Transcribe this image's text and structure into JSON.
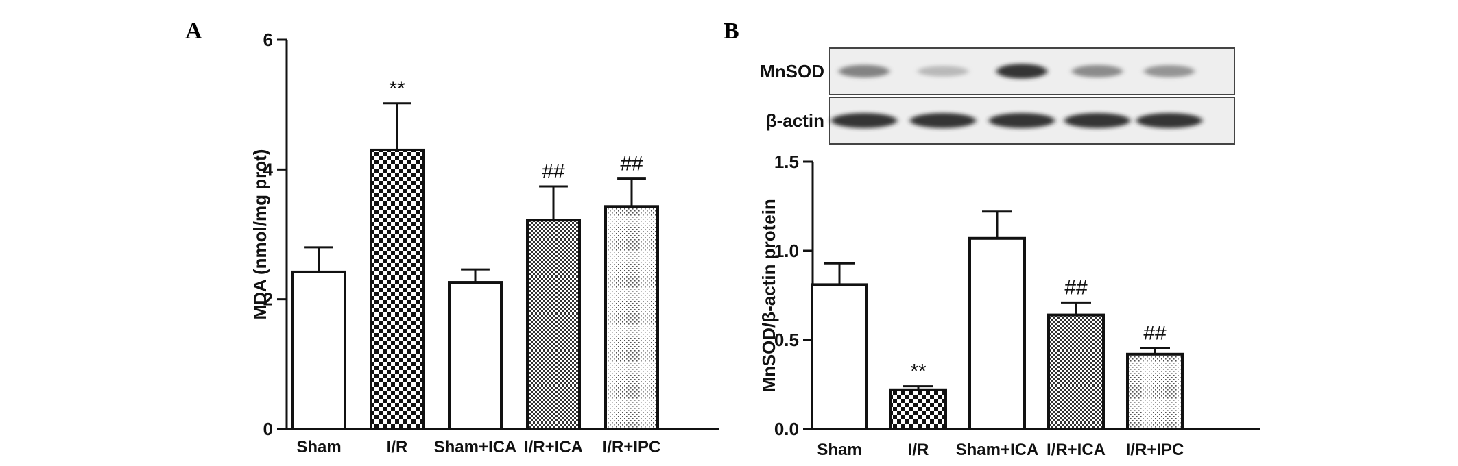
{
  "chart_data": [
    {
      "panel": "A",
      "type": "bar",
      "categories": [
        "Sham",
        "I/R",
        "Sham+ICA",
        "I/R+ICA",
        "I/R+IPC"
      ],
      "values": [
        2.42,
        4.3,
        2.26,
        3.22,
        3.43
      ],
      "errors": [
        0.38,
        0.72,
        0.2,
        0.52,
        0.43
      ],
      "significance": [
        "",
        "**",
        "",
        "##",
        "##"
      ],
      "patterns": [
        "none",
        "checker",
        "none",
        "fine-checker",
        "dots"
      ],
      "ylabel": "MDA (nmol/mg prot)",
      "ylim": [
        0,
        6
      ],
      "yticks": [
        0,
        2,
        4,
        6
      ],
      "xlabel": "",
      "title": ""
    },
    {
      "panel": "B",
      "type": "bar",
      "categories": [
        "Sham",
        "I/R",
        "Sham+ICA",
        "I/R+ICA",
        "I/R+IPC"
      ],
      "values": [
        0.81,
        0.22,
        1.07,
        0.64,
        0.42
      ],
      "errors": [
        0.12,
        0.02,
        0.15,
        0.07,
        0.035
      ],
      "significance": [
        "",
        "**",
        "",
        "##",
        "##"
      ],
      "patterns": [
        "none",
        "checker",
        "none",
        "fine-checker",
        "dots"
      ],
      "ylabel": "MnSOD/β-actin protein",
      "ylim": [
        0,
        1.5
      ],
      "yticks": [
        0.0,
        0.5,
        1.0,
        1.5
      ],
      "tick_labels": [
        "0.0",
        "0.5",
        "1.0",
        "1.5"
      ],
      "xlabel": "",
      "title": "",
      "blot": {
        "rows": [
          "MnSOD",
          "β-actin"
        ],
        "lanes": 5,
        "mnsod_intensity": [
          0.55,
          0.2,
          0.95,
          0.5,
          0.45
        ],
        "actin_intensity": [
          0.95,
          0.95,
          0.95,
          0.95,
          0.95
        ]
      }
    }
  ],
  "panels": {
    "a_letter": "A",
    "b_letter": "B"
  },
  "colors": {
    "ink": "#111111",
    "background": "#ffffff",
    "blot_bg": "#eeeeee"
  }
}
